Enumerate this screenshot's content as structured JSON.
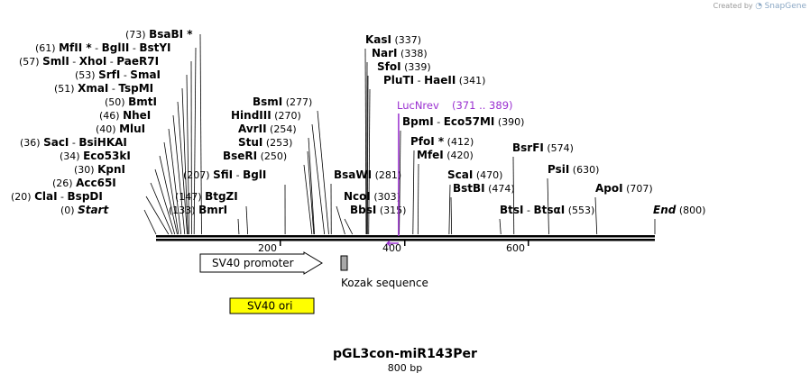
{
  "credit": {
    "prefix": "Created by",
    "logo_text": "SnapGene"
  },
  "map": {
    "name": "pGL3con-miR143Per",
    "length_label": "800 bp",
    "total_bp": 800,
    "ruler_ticks": [
      "200",
      "400",
      "600"
    ]
  },
  "sites": [
    {
      "pos": "(73)",
      "names": [
        "BsaBI *"
      ],
      "bp": 73
    },
    {
      "pos": "(61)",
      "names": [
        "MfII *",
        "BglII",
        "BstYI"
      ],
      "bp": 61
    },
    {
      "pos": "(57)",
      "names": [
        "SmlI",
        "XhoI",
        "PaeR7I"
      ],
      "bp": 57
    },
    {
      "pos": "(53)",
      "names": [
        "SrfI",
        "SmaI"
      ],
      "bp": 53
    },
    {
      "pos": "(51)",
      "names": [
        "XmaI",
        "TspMI"
      ],
      "bp": 51
    },
    {
      "pos": "(50)",
      "names": [
        "BmtI"
      ],
      "bp": 50
    },
    {
      "pos": "(46)",
      "names": [
        "NheI"
      ],
      "bp": 46
    },
    {
      "pos": "(40)",
      "names": [
        "MluI"
      ],
      "bp": 40
    },
    {
      "pos": "(36)",
      "names": [
        "SacI",
        "BsiHKAI"
      ],
      "bp": 36
    },
    {
      "pos": "(34)",
      "names": [
        "Eco53kI"
      ],
      "bp": 34
    },
    {
      "pos": "(30)",
      "names": [
        "KpnI"
      ],
      "bp": 30
    },
    {
      "pos": "(26)",
      "names": [
        "Acc65I"
      ],
      "bp": 26
    },
    {
      "pos": "(20)",
      "names": [
        "ClaI",
        "BspDI"
      ],
      "bp": 20
    },
    {
      "pos": "(0)",
      "names": [
        "Start"
      ],
      "bp": 0,
      "italic": true
    },
    {
      "pos": "(207)",
      "names": [
        "SfiI",
        "BglI"
      ],
      "bp": 207
    },
    {
      "pos": "(147)",
      "names": [
        "BtgZI"
      ],
      "bp": 147
    },
    {
      "pos": "(133)",
      "names": [
        "BmrI"
      ],
      "bp": 133
    },
    {
      "pos": "(277)",
      "names": [
        "BsmI"
      ],
      "bp": 277
    },
    {
      "pos": "(270)",
      "names": [
        "HindIII"
      ],
      "bp": 270
    },
    {
      "pos": "(254)",
      "names": [
        "AvrII"
      ],
      "bp": 254
    },
    {
      "pos": "(253)",
      "names": [
        "StuI"
      ],
      "bp": 253
    },
    {
      "pos": "(250)",
      "names": [
        "BseRI"
      ],
      "bp": 250
    },
    {
      "pos": "(337)",
      "names": [
        "KasI"
      ],
      "bp": 337
    },
    {
      "pos": "(338)",
      "names": [
        "NarI"
      ],
      "bp": 338
    },
    {
      "pos": "(339)",
      "names": [
        "SfoI"
      ],
      "bp": 339
    },
    {
      "pos": "(341)",
      "names": [
        "PluTI",
        "HaeII"
      ],
      "bp": 341
    },
    {
      "pos": "(390)",
      "names": [
        "BpmI",
        "Eco57MI"
      ],
      "bp": 390
    },
    {
      "pos": "(412)",
      "names": [
        "PfoI *"
      ],
      "bp": 412
    },
    {
      "pos": "(420)",
      "names": [
        "MfeI"
      ],
      "bp": 420
    },
    {
      "pos": "(281)",
      "names": [
        "BsaWI"
      ],
      "bp": 281
    },
    {
      "pos": "(303)",
      "names": [
        "NcoI"
      ],
      "bp": 303
    },
    {
      "pos": "(315)",
      "names": [
        "BbsI"
      ],
      "bp": 315
    },
    {
      "pos": "(470)",
      "names": [
        "ScaI"
      ],
      "bp": 470
    },
    {
      "pos": "(474)",
      "names": [
        "BstBI"
      ],
      "bp": 474
    },
    {
      "pos": "(574)",
      "names": [
        "BsrFI"
      ],
      "bp": 574
    },
    {
      "pos": "(630)",
      "names": [
        "PsiI"
      ],
      "bp": 630
    },
    {
      "pos": "(707)",
      "names": [
        "ApoI"
      ],
      "bp": 707
    },
    {
      "pos": "(553)",
      "names": [
        "BtsI",
        "BtsαI"
      ],
      "bp": 553
    },
    {
      "pos": "(800)",
      "names": [
        "End"
      ],
      "bp": 800,
      "italic": true
    }
  ],
  "primer": {
    "name": "LucNrev",
    "range": "(371 .. 389)",
    "start": 371,
    "end": 389,
    "color": "#9a30d0"
  },
  "features": {
    "promoter": {
      "label": "SV40 promoter",
      "start": 70,
      "end": 266
    },
    "kozak": {
      "label": "Kozak sequence",
      "start": 298,
      "end": 308,
      "color": "#a8a8a8"
    },
    "ori": {
      "label": "SV40 ori",
      "start": 120,
      "end": 256,
      "color": "#ffff00"
    }
  }
}
